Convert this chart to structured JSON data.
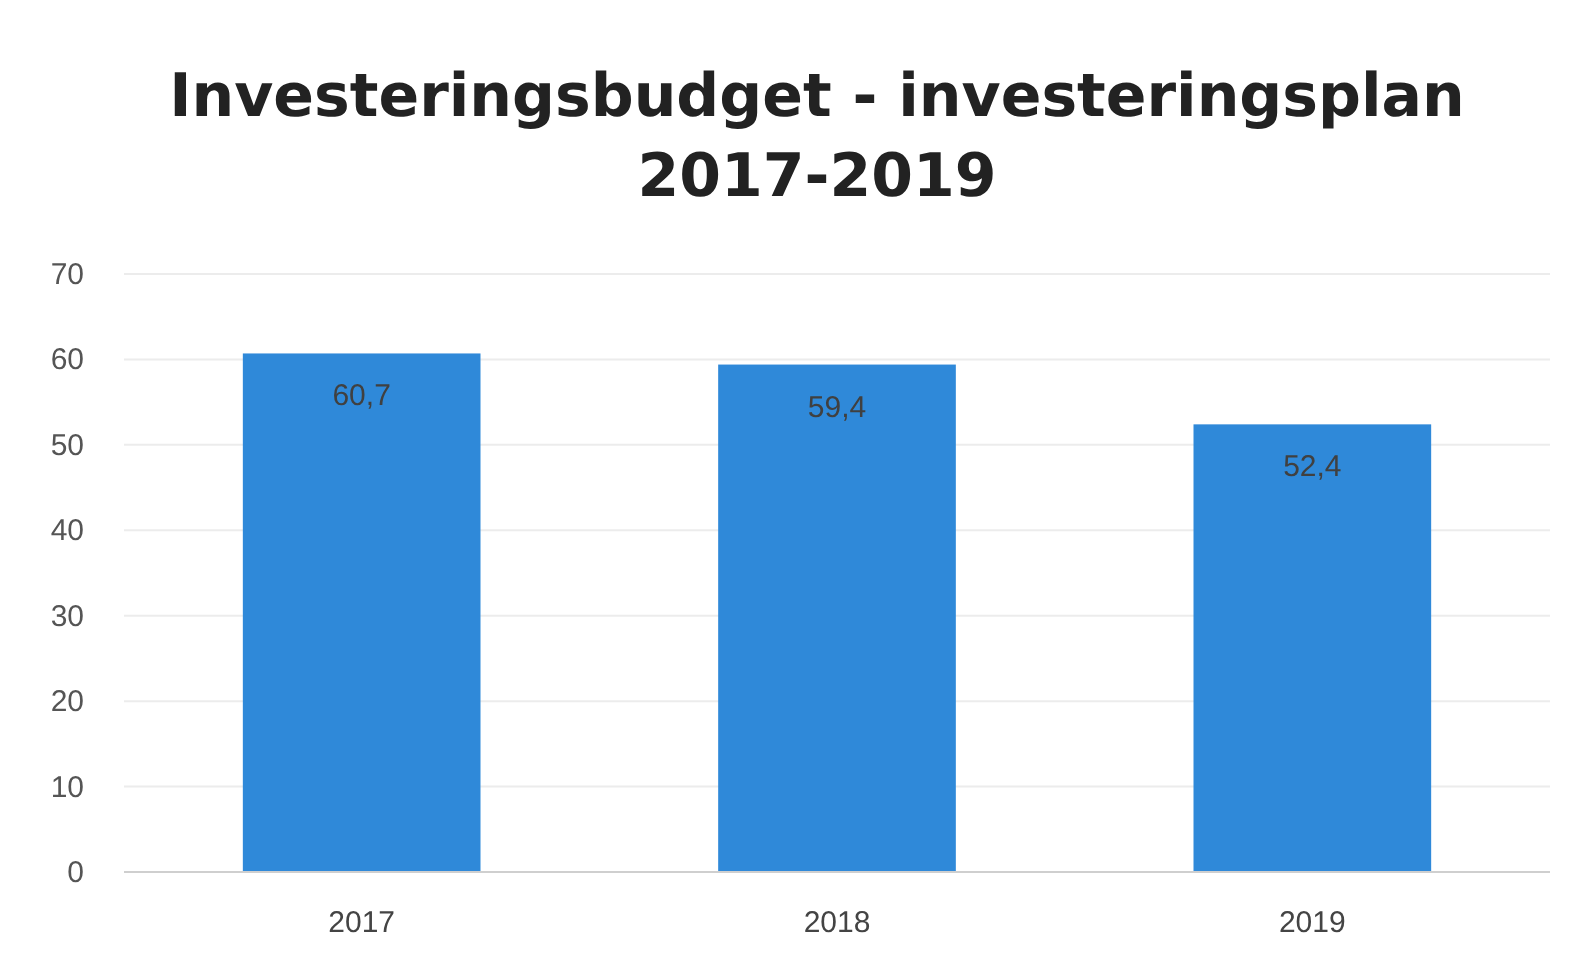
{
  "chart_data": {
    "type": "bar",
    "title": "Investeringsbudget - investeringsplan\n2017-2019",
    "categories": [
      "2017",
      "2018",
      "2019"
    ],
    "values": [
      60.7,
      59.4,
      52.4
    ],
    "value_labels": [
      "60,7",
      "59,4",
      "52,4"
    ],
    "color": "#2f89d9",
    "ylim": [
      0,
      70
    ],
    "yticks": [
      0,
      10,
      20,
      30,
      40,
      50,
      60,
      70
    ],
    "grid": "y"
  }
}
